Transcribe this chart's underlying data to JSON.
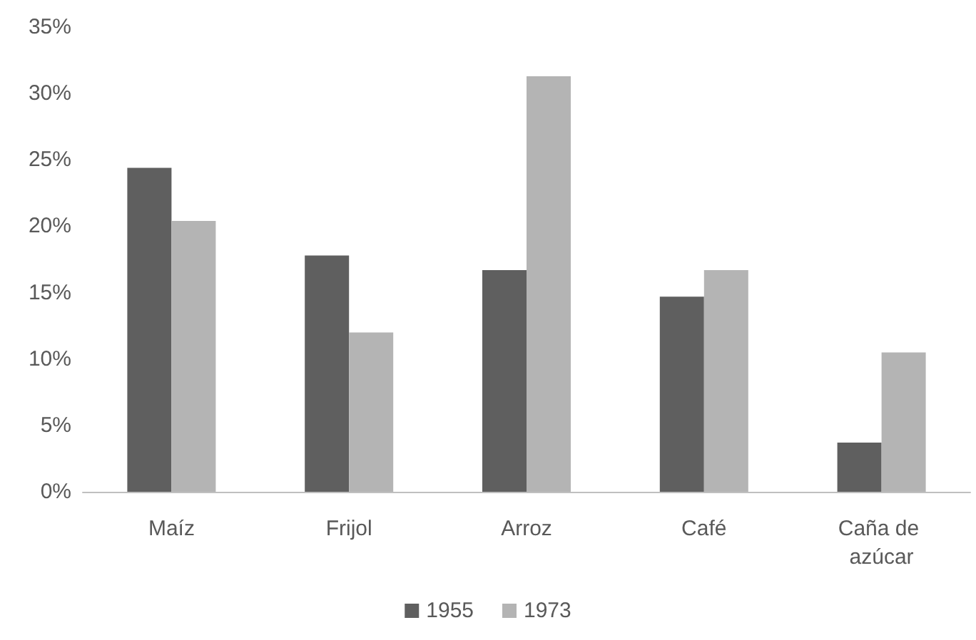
{
  "chart_data": {
    "type": "bar",
    "categories": [
      "Maíz",
      "Frijol",
      "Arroz",
      "Café",
      "Caña de azúcar"
    ],
    "series": [
      {
        "name": "1955",
        "color": "#5f5f5f",
        "values": [
          24.4,
          17.8,
          16.7,
          14.7,
          3.7
        ]
      },
      {
        "name": "1973",
        "color": "#b4b4b4",
        "values": [
          20.4,
          12.0,
          31.3,
          16.7,
          10.5
        ]
      }
    ],
    "ylim": [
      0,
      35
    ],
    "yticks": [
      {
        "value": 0,
        "label": "0%"
      },
      {
        "value": 5,
        "label": "5%"
      },
      {
        "value": 10,
        "label": "10%"
      },
      {
        "value": 15,
        "label": "15%"
      },
      {
        "value": 20,
        "label": "20%"
      },
      {
        "value": 25,
        "label": "25%"
      },
      {
        "value": 30,
        "label": "30%"
      },
      {
        "value": 35,
        "label": "35%"
      }
    ],
    "grid": false,
    "legend": "bottom"
  }
}
